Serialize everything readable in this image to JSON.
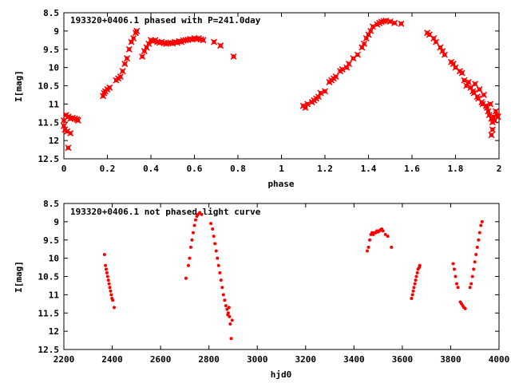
{
  "chart_data": [
    {
      "type": "scatter",
      "title": "193320+0406.1 phased with P=241.0day",
      "xlabel": "phase",
      "ylabel": "I[mag]",
      "xlim": [
        0,
        2
      ],
      "ylim": [
        12.5,
        8.5
      ],
      "y_inverted": true,
      "xticks": [
        "0",
        "0.2",
        "0.4",
        "0.6",
        "0.8",
        "1",
        "1.2",
        "1.4",
        "1.6",
        "1.8",
        "2"
      ],
      "yticks": [
        "8.5",
        "9",
        "9.5",
        "10",
        "10.5",
        "11",
        "11.5",
        "12",
        "12.5"
      ],
      "grid": false,
      "marker_color": "#ff0000",
      "series": [
        {
          "points": [
            [
              0.0,
              11.45
            ],
            [
              0.0,
              11.6
            ],
            [
              0.005,
              11.7
            ],
            [
              0.01,
              11.3
            ],
            [
              0.015,
              11.75
            ],
            [
              0.02,
              11.35
            ],
            [
              0.02,
              12.2
            ],
            [
              0.03,
              11.4
            ],
            [
              0.03,
              11.8
            ],
            [
              0.04,
              11.38
            ],
            [
              0.05,
              11.4
            ],
            [
              0.06,
              11.42
            ],
            [
              0.065,
              11.45
            ],
            [
              0.18,
              10.78
            ],
            [
              0.185,
              10.7
            ],
            [
              0.19,
              10.65
            ],
            [
              0.2,
              10.6
            ],
            [
              0.21,
              10.55
            ],
            [
              0.24,
              10.35
            ],
            [
              0.25,
              10.3
            ],
            [
              0.26,
              10.25
            ],
            [
              0.27,
              10.1
            ],
            [
              0.28,
              9.9
            ],
            [
              0.29,
              9.75
            ],
            [
              0.3,
              9.5
            ],
            [
              0.31,
              9.3
            ],
            [
              0.32,
              9.2
            ],
            [
              0.33,
              9.05
            ],
            [
              0.335,
              9.0
            ],
            [
              0.36,
              9.7
            ],
            [
              0.37,
              9.55
            ],
            [
              0.38,
              9.45
            ],
            [
              0.39,
              9.35
            ],
            [
              0.4,
              9.25
            ],
            [
              0.41,
              9.28
            ],
            [
              0.42,
              9.25
            ],
            [
              0.43,
              9.3
            ],
            [
              0.44,
              9.32
            ],
            [
              0.45,
              9.3
            ],
            [
              0.46,
              9.33
            ],
            [
              0.47,
              9.35
            ],
            [
              0.48,
              9.33
            ],
            [
              0.49,
              9.32
            ],
            [
              0.5,
              9.34
            ],
            [
              0.51,
              9.3
            ],
            [
              0.52,
              9.32
            ],
            [
              0.53,
              9.28
            ],
            [
              0.54,
              9.3
            ],
            [
              0.55,
              9.26
            ],
            [
              0.56,
              9.25
            ],
            [
              0.57,
              9.24
            ],
            [
              0.58,
              9.22
            ],
            [
              0.59,
              9.23
            ],
            [
              0.6,
              9.2
            ],
            [
              0.61,
              9.22
            ],
            [
              0.62,
              9.2
            ],
            [
              0.63,
              9.23
            ],
            [
              0.64,
              9.25
            ],
            [
              0.69,
              9.3
            ],
            [
              0.72,
              9.4
            ],
            [
              0.78,
              9.7
            ],
            [
              1.1,
              11.05
            ],
            [
              1.11,
              11.1
            ],
            [
              1.12,
              11.0
            ],
            [
              1.14,
              10.95
            ],
            [
              1.15,
              10.9
            ],
            [
              1.16,
              10.85
            ],
            [
              1.17,
              10.8
            ],
            [
              1.18,
              10.7
            ],
            [
              1.2,
              10.65
            ],
            [
              1.22,
              10.4
            ],
            [
              1.23,
              10.35
            ],
            [
              1.24,
              10.3
            ],
            [
              1.25,
              10.25
            ],
            [
              1.27,
              10.1
            ],
            [
              1.28,
              10.05
            ],
            [
              1.3,
              10.0
            ],
            [
              1.31,
              9.9
            ],
            [
              1.33,
              9.75
            ],
            [
              1.35,
              9.65
            ],
            [
              1.37,
              9.45
            ],
            [
              1.38,
              9.35
            ],
            [
              1.39,
              9.2
            ],
            [
              1.4,
              9.1
            ],
            [
              1.41,
              9.0
            ],
            [
              1.42,
              8.88
            ],
            [
              1.44,
              8.82
            ],
            [
              1.45,
              8.78
            ],
            [
              1.46,
              8.75
            ],
            [
              1.47,
              8.73
            ],
            [
              1.48,
              8.72
            ],
            [
              1.5,
              8.74
            ],
            [
              1.52,
              8.78
            ],
            [
              1.55,
              8.8
            ],
            [
              1.67,
              9.05
            ],
            [
              1.68,
              9.1
            ],
            [
              1.7,
              9.2
            ],
            [
              1.71,
              9.3
            ],
            [
              1.73,
              9.45
            ],
            [
              1.74,
              9.55
            ],
            [
              1.75,
              9.65
            ],
            [
              1.78,
              9.85
            ],
            [
              1.79,
              9.9
            ],
            [
              1.8,
              10.0
            ],
            [
              1.82,
              10.1
            ],
            [
              1.83,
              10.15
            ],
            [
              1.84,
              10.35
            ],
            [
              1.85,
              10.5
            ],
            [
              1.86,
              10.4
            ],
            [
              1.87,
              10.55
            ],
            [
              1.88,
              10.65
            ],
            [
              1.885,
              10.7
            ],
            [
              1.89,
              10.45
            ],
            [
              1.9,
              10.8
            ],
            [
              1.905,
              10.85
            ],
            [
              1.91,
              10.6
            ],
            [
              1.92,
              10.95
            ],
            [
              1.925,
              11.0
            ],
            [
              1.93,
              10.75
            ],
            [
              1.94,
              11.05
            ],
            [
              1.945,
              11.1
            ],
            [
              1.95,
              11.2
            ],
            [
              1.955,
              11.3
            ],
            [
              1.96,
              11.0
            ],
            [
              1.965,
              11.4
            ],
            [
              1.97,
              11.5
            ],
            [
              1.975,
              11.35
            ],
            [
              1.98,
              11.45
            ],
            [
              1.985,
              11.2
            ],
            [
              1.99,
              11.3
            ],
            [
              1.995,
              11.35
            ],
            [
              1.965,
              11.85
            ],
            [
              1.97,
              11.7
            ]
          ]
        }
      ]
    },
    {
      "type": "scatter",
      "title": "193320+0406.1 not phased light curve",
      "xlabel": "hjd0",
      "ylabel": "I[mag]",
      "xlim": [
        2200,
        4000
      ],
      "ylim": [
        12.5,
        8.5
      ],
      "y_inverted": true,
      "xticks": [
        "2200",
        "2400",
        "2600",
        "2800",
        "3000",
        "3200",
        "3400",
        "3600",
        "3800",
        "4000"
      ],
      "yticks": [
        "8.5",
        "9",
        "9.5",
        "10",
        "10.5",
        "11",
        "11.5",
        "12",
        "12.5"
      ],
      "grid": false,
      "marker_color": "#ff0000",
      "series": [
        {
          "points": [
            [
              2368,
              9.9
            ],
            [
              2372,
              10.2
            ],
            [
              2375,
              10.3
            ],
            [
              2378,
              10.4
            ],
            [
              2381,
              10.5
            ],
            [
              2384,
              10.6
            ],
            [
              2387,
              10.7
            ],
            [
              2390,
              10.8
            ],
            [
              2393,
              10.9
            ],
            [
              2396,
              11.0
            ],
            [
              2399,
              11.1
            ],
            [
              2402,
              11.15
            ],
            [
              2408,
              11.35
            ],
            [
              2705,
              10.55
            ],
            [
              2715,
              10.2
            ],
            [
              2720,
              10.0
            ],
            [
              2725,
              9.7
            ],
            [
              2730,
              9.5
            ],
            [
              2735,
              9.3
            ],
            [
              2740,
              9.1
            ],
            [
              2745,
              8.95
            ],
            [
              2750,
              8.85
            ],
            [
              2755,
              8.8
            ],
            [
              2762,
              8.75
            ],
            [
              2770,
              8.8
            ],
            [
              2808,
              9.05
            ],
            [
              2815,
              9.2
            ],
            [
              2820,
              9.4
            ],
            [
              2825,
              9.6
            ],
            [
              2830,
              9.8
            ],
            [
              2835,
              10.0
            ],
            [
              2840,
              10.2
            ],
            [
              2845,
              10.4
            ],
            [
              2850,
              10.6
            ],
            [
              2855,
              10.8
            ],
            [
              2860,
              11.0
            ],
            [
              2865,
              11.15
            ],
            [
              2870,
              11.3
            ],
            [
              2875,
              11.4
            ],
            [
              2880,
              11.5
            ],
            [
              2885,
              11.6
            ],
            [
              2888,
              11.8
            ],
            [
              2892,
              12.2
            ],
            [
              2896,
              11.7
            ],
            [
              2878,
              11.55
            ],
            [
              2883,
              11.35
            ],
            [
              3455,
              9.8
            ],
            [
              3460,
              9.7
            ],
            [
              3465,
              9.5
            ],
            [
              3470,
              9.35
            ],
            [
              3475,
              9.3
            ],
            [
              3480,
              9.35
            ],
            [
              3485,
              9.3
            ],
            [
              3490,
              9.3
            ],
            [
              3495,
              9.25
            ],
            [
              3500,
              9.28
            ],
            [
              3505,
              9.25
            ],
            [
              3510,
              9.22
            ],
            [
              3515,
              9.2
            ],
            [
              3520,
              9.25
            ],
            [
              3530,
              9.35
            ],
            [
              3540,
              9.4
            ],
            [
              3555,
              9.7
            ],
            [
              3638,
              11.1
            ],
            [
              3642,
              11.0
            ],
            [
              3645,
              10.9
            ],
            [
              3648,
              10.8
            ],
            [
              3652,
              10.7
            ],
            [
              3655,
              10.6
            ],
            [
              3658,
              10.5
            ],
            [
              3662,
              10.4
            ],
            [
              3665,
              10.3
            ],
            [
              3670,
              10.25
            ],
            [
              3672,
              10.2
            ],
            [
              3810,
              10.15
            ],
            [
              3815,
              10.3
            ],
            [
              3820,
              10.5
            ],
            [
              3825,
              10.7
            ],
            [
              3830,
              10.8
            ],
            [
              3840,
              11.2
            ],
            [
              3845,
              11.25
            ],
            [
              3850,
              11.3
            ],
            [
              3855,
              11.35
            ],
            [
              3860,
              11.38
            ],
            [
              3880,
              10.8
            ],
            [
              3885,
              10.7
            ],
            [
              3890,
              10.5
            ],
            [
              3895,
              10.3
            ],
            [
              3900,
              10.1
            ],
            [
              3905,
              9.9
            ],
            [
              3910,
              9.7
            ],
            [
              3915,
              9.5
            ],
            [
              3920,
              9.3
            ],
            [
              3925,
              9.1
            ],
            [
              3930,
              9.0
            ]
          ]
        }
      ]
    }
  ]
}
